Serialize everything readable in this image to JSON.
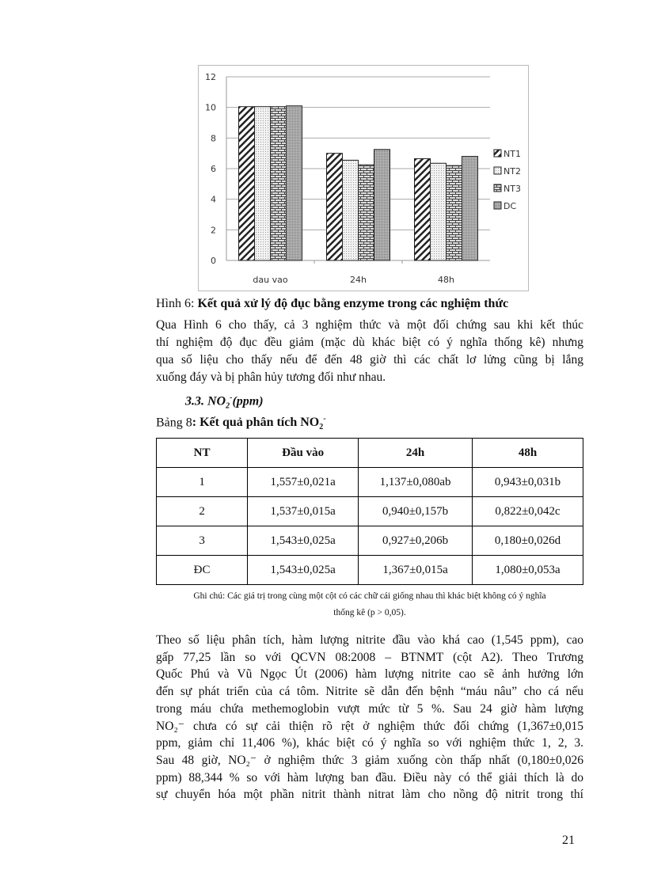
{
  "chart_data": {
    "type": "bar",
    "categories": [
      "dau vao",
      "24h",
      "48h"
    ],
    "series": [
      {
        "name": "NT1",
        "values": [
          10.05,
          7.0,
          6.65
        ],
        "pattern": "diagonal-hatch"
      },
      {
        "name": "NT2",
        "values": [
          10.05,
          6.55,
          6.35
        ],
        "pattern": "light-dots"
      },
      {
        "name": "NT3",
        "values": [
          10.05,
          6.25,
          6.2
        ],
        "pattern": "brick"
      },
      {
        "name": "DC",
        "values": [
          10.1,
          7.25,
          6.8
        ],
        "pattern": "dense-gray"
      }
    ],
    "ylim": [
      0,
      12
    ],
    "yticks": [
      0,
      2,
      4,
      6,
      8,
      10,
      12
    ],
    "grid": true,
    "legend": "right"
  },
  "figure_caption": {
    "prefix": "Hình 6: ",
    "title": "Kết quả xử lý độ đục bằng enzyme trong các nghiệm thức"
  },
  "paragraph1": [
    "Qua Hình 6 cho thấy, cả 3 nghiệm thức và một đối chứng sau khi kết thúc",
    "thí nghiệm độ đục đều giảm (mặc dù khác biệt có ý nghĩa thống kê) nhưng",
    "qua số liệu cho thấy nếu để đến 48 giờ thì các chất lơ lửng cũng bị lắng",
    "xuống đáy và bị phân hủy tương đối như nhau."
  ],
  "section_heading": {
    "number": "3.3. NO",
    "sub": "2",
    "sup": "-",
    "unit": "(ppm)"
  },
  "table_caption": {
    "prefix": "Bảng 8",
    "title": ": Kết quả phân tích NO",
    "sub": "2",
    "sup": "-"
  },
  "table": {
    "headers": [
      "NT",
      "Đầu vào",
      "24h",
      "48h"
    ],
    "rows": [
      [
        "1",
        "1,557±0,021a",
        "1,137±0,080ab",
        "0,943±0,031b"
      ],
      [
        "2",
        "1,537±0,015a",
        "0,940±0,157b",
        "0,822±0,042c"
      ],
      [
        "3",
        "1,543±0,025a",
        "0,927±0,206b",
        "0,180±0,026d"
      ],
      [
        "ĐC",
        "1,543±0,025a",
        "1,367±0,015a",
        "1,080±0,053a"
      ]
    ]
  },
  "table_note": [
    "Ghi chú: Các giá trị trong cùng một cột có các chữ cái giống nhau thì khác biệt không có ý nghĩa",
    "thống kê (p > 0,05)."
  ],
  "paragraph2": [
    "Theo số liệu phân tích, hàm lượng nitrite đầu vào khá cao (1,545 ppm), cao",
    "gấp 77,25 lần so với QCVN 08:2008 – BTNMT (cột A2). Theo Trương",
    "Quốc Phú và Vũ Ngọc Út (2006) hàm lượng nitrite cao sẽ ảnh hưởng lớn",
    "đến sự phát triển của cá tôm. Nitrite sẽ dẫn đến bệnh “máu nâu” cho cá nếu",
    "trong máu chứa methemoglobin vượt mức từ 5 %. Sau 24 giờ hàm lượng",
    "NO₂⁻ chưa có sự cải thiện rõ rệt ở nghiệm thức đối chứng (1,367±0,015",
    "ppm, giảm chỉ 11,406 %), khác biệt có ý nghĩa so với nghiệm thức 1, 2, 3.",
    "Sau 48 giờ, NO₂⁻ ở nghiệm thức 3 giảm xuống còn thấp nhất (0,180±0,026",
    "ppm) 88,344 % so với hàm lượng ban đầu. Điều này có thể giải thích là do",
    "sự chuyển hóa một phần nitrit thành nitrat làm cho nồng độ nitrit trong thí"
  ],
  "page_number": "21"
}
